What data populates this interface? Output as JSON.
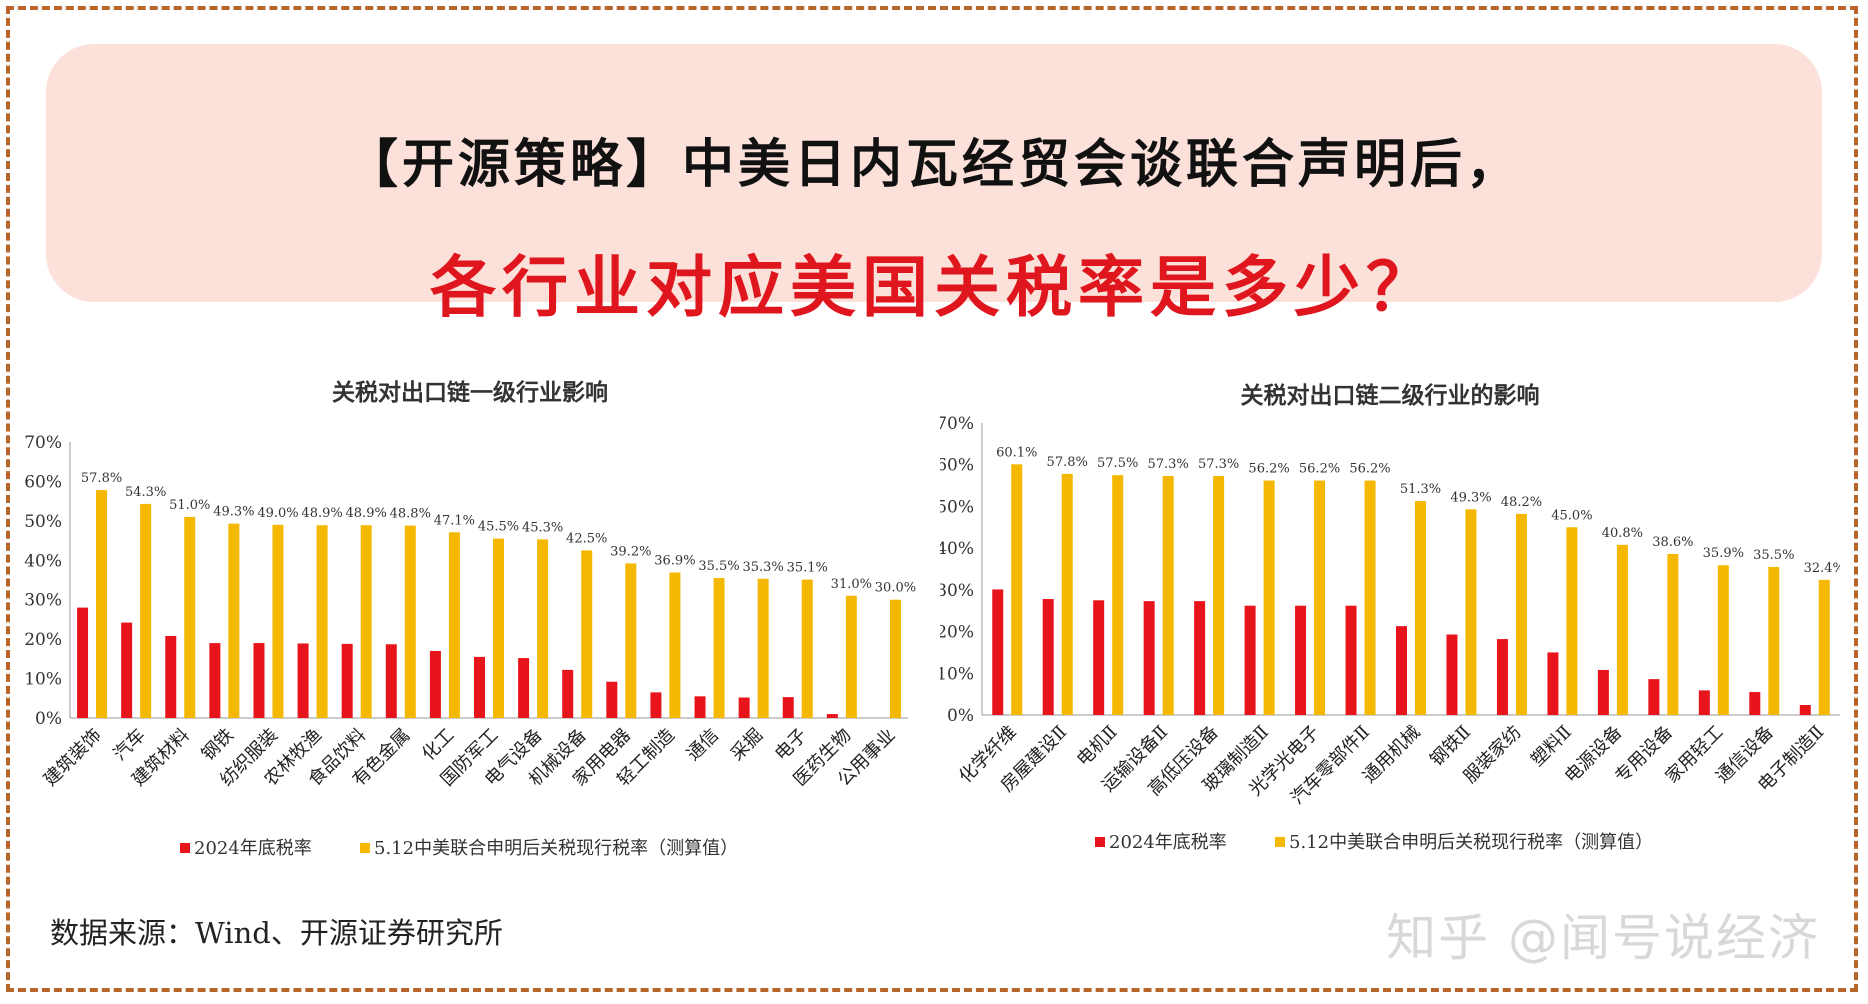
{
  "title_line1": "【开源策略】中美日内瓦经贸会谈联合声明后，",
  "title_line2": "各行业对应美国关税率是多少？",
  "source": "数据来源：Wind、开源证券研究所",
  "watermark": "知乎 @闻号说经济",
  "colors": {
    "series_2024": "#e8141b",
    "series_new": "#f5b800",
    "accent": "#e0161e",
    "border": "#b8652a"
  },
  "chart_data": [
    {
      "type": "bar",
      "title": "关税对出口链一级行业影响",
      "ylim": [
        0,
        70
      ],
      "y_ticks": [
        "0%",
        "10%",
        "20%",
        "30%",
        "40%",
        "50%",
        "60%",
        "70%"
      ],
      "categories": [
        "建筑装饰",
        "汽车",
        "建筑材料",
        "钢铁",
        "纺织服装",
        "农林牧渔",
        "食品饮料",
        "有色金属",
        "化工",
        "国防军工",
        "电气设备",
        "机械设备",
        "家用电器",
        "轻工制造",
        "通信",
        "采掘",
        "电子",
        "医药生物",
        "公用事业"
      ],
      "series": [
        {
          "name": "2024年底税率",
          "values": [
            28,
            24.2,
            20.8,
            19,
            19,
            18.9,
            18.8,
            18.7,
            17,
            15.5,
            15.2,
            12.2,
            9.2,
            6.5,
            5.5,
            5.2,
            5.3,
            1,
            0
          ]
        },
        {
          "name": "5.12中美联合申明后关税现行税率（测算值）",
          "values": [
            57.8,
            54.3,
            51.0,
            49.3,
            49.0,
            48.9,
            48.9,
            48.8,
            47.1,
            45.5,
            45.3,
            42.5,
            39.2,
            36.9,
            35.5,
            35.3,
            35.1,
            31.0,
            30.0
          ]
        }
      ],
      "data_labels": [
        "57.8%",
        "54.3%",
        "51.0%",
        "49.3%",
        "49.0%",
        "48.9%",
        "48.9%",
        "48.8%",
        "47.1%",
        "45.5%",
        "45.3%",
        "42.5%",
        "39.2%",
        "36.9%",
        "35.5%",
        "35.3%",
        "35.1%",
        "31.0%",
        "30.0%"
      ],
      "legend": [
        "2024年底税率",
        "5.12中美联合申明后关税现行税率（测算值）"
      ]
    },
    {
      "type": "bar",
      "title": "关税对出口链二级行业的影响",
      "ylim": [
        0,
        70
      ],
      "y_ticks": [
        "0%",
        "10%",
        "20%",
        "30%",
        "40%",
        "50%",
        "60%",
        "70%"
      ],
      "categories": [
        "化学纤维",
        "房屋建设Ⅱ",
        "电机Ⅱ",
        "运输设备Ⅱ",
        "高低压设备",
        "玻璃制造Ⅱ",
        "光学光电子",
        "汽车零部件Ⅱ",
        "通用机械",
        "钢铁Ⅱ",
        "服装家纺",
        "塑料Ⅱ",
        "电源设备",
        "专用设备",
        "家用轻工",
        "通信设备",
        "电子制造Ⅱ"
      ],
      "series": [
        {
          "name": "2024年底税率",
          "values": [
            30.1,
            27.8,
            27.5,
            27.3,
            27.3,
            26.2,
            26.2,
            26.2,
            21.3,
            19.3,
            18.2,
            15,
            10.8,
            8.6,
            5.9,
            5.5,
            2.4
          ]
        },
        {
          "name": "5.12中美联合申明后关税现行税率（测算值）",
          "values": [
            60.1,
            57.8,
            57.5,
            57.3,
            57.3,
            56.2,
            56.2,
            56.2,
            51.3,
            49.3,
            48.2,
            45.0,
            40.8,
            38.6,
            35.9,
            35.5,
            32.4
          ]
        }
      ],
      "data_labels": [
        "60.1%",
        "57.8%",
        "57.5%",
        "57.3%",
        "57.3%",
        "56.2%",
        "56.2%",
        "56.2%",
        "51.3%",
        "49.3%",
        "48.2%",
        "45.0%",
        "40.8%",
        "38.6%",
        "35.9%",
        "35.5%",
        "32.4%"
      ],
      "legend": [
        "2024年底税率",
        "5.12中美联合申明后关税现行税率（测算值）"
      ]
    }
  ]
}
